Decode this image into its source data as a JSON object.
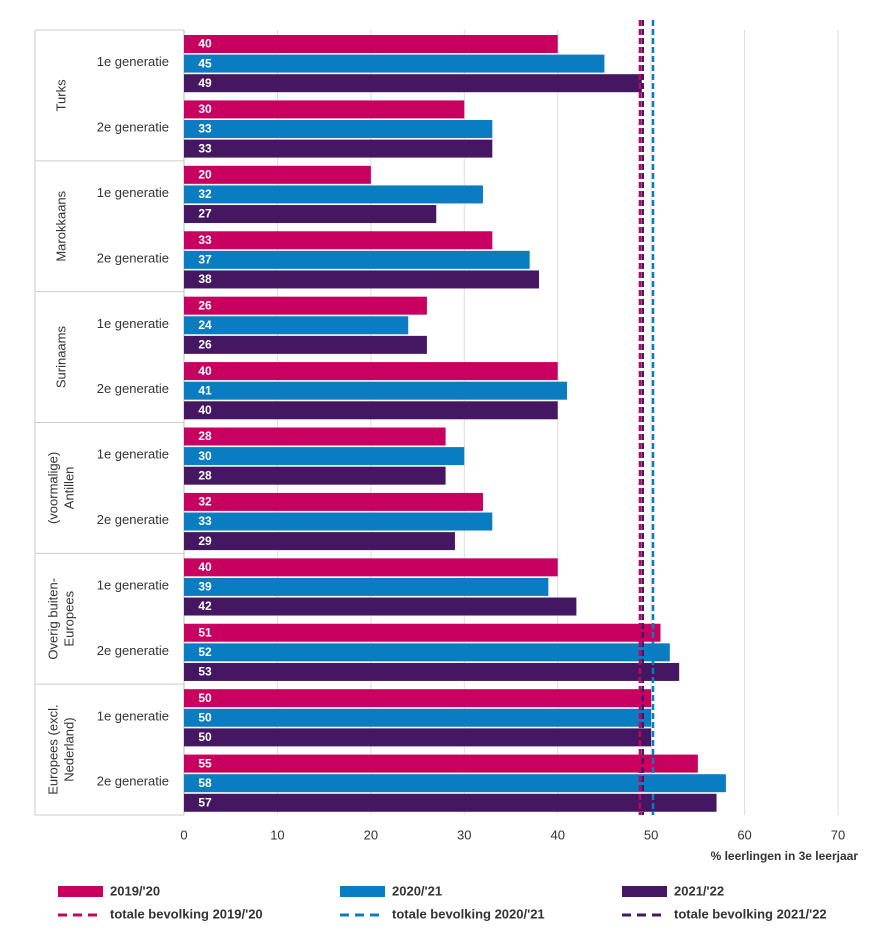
{
  "chart_data": {
    "type": "bar",
    "orientation": "horizontal",
    "groups": [
      {
        "name": [
          "Turks"
        ],
        "categories": [
          "1e generatie",
          "2e generatie"
        ]
      },
      {
        "name": [
          "Marokkaans"
        ],
        "categories": [
          "1e generatie",
          "2e generatie"
        ]
      },
      {
        "name": [
          "Surinaams"
        ],
        "categories": [
          "1e generatie",
          "2e generatie"
        ]
      },
      {
        "name": [
          "(voormalige)",
          "Antillen"
        ],
        "categories": [
          "1e generatie",
          "2e generatie"
        ]
      },
      {
        "name": [
          "Overig buiten-",
          "Europees"
        ],
        "categories": [
          "1e generatie",
          "2e generatie"
        ]
      },
      {
        "name": [
          "Europees (excl.",
          "Nederland)"
        ],
        "categories": [
          "1e generatie",
          "2e generatie"
        ]
      }
    ],
    "series": [
      {
        "name": "2019/'20",
        "color": "#c8005f",
        "values": [
          40,
          30,
          20,
          33,
          26,
          40,
          28,
          32,
          40,
          51,
          50,
          55
        ]
      },
      {
        "name": "2020/'21",
        "color": "#0a7cc1",
        "values": [
          45,
          33,
          32,
          37,
          24,
          41,
          30,
          33,
          39,
          52,
          50,
          58
        ]
      },
      {
        "name": "2021/'22",
        "color": "#451763",
        "values": [
          49,
          33,
          27,
          38,
          26,
          40,
          28,
          29,
          42,
          53,
          50,
          57
        ]
      }
    ],
    "reference_lines": [
      {
        "name": "totale bevolking 2019/'20",
        "color": "#c8005f",
        "value": 48.8
      },
      {
        "name": "totale bevolking 2020/'21",
        "color": "#0a7cc1",
        "value": 50.2
      },
      {
        "name": "totale bevolking 2021/'22",
        "color": "#451763",
        "value": 49.1
      }
    ],
    "x_label": "% leerlingen in 3e leerjaar",
    "xlim": [
      0,
      70
    ],
    "xticks": [
      0,
      10,
      20,
      30,
      40,
      50,
      60,
      70
    ],
    "grid": true
  }
}
